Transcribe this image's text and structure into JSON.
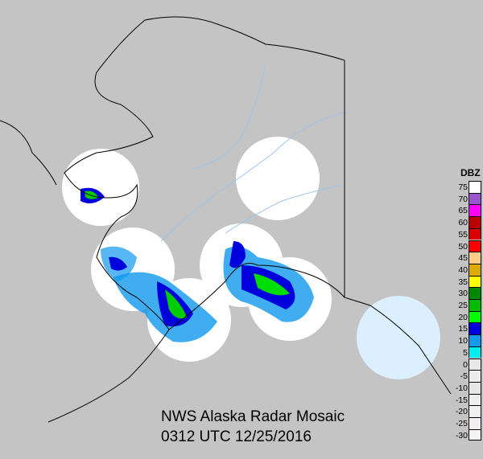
{
  "title": "NWS Alaska Radar Mosaic",
  "timestamp": "0312 UTC 12/25/2016",
  "colors": {
    "background": "#c4c4c4",
    "coastline": "#000000",
    "rivers": "#9fc3ee",
    "radar_coverage": "#ffffff",
    "radar_water": "#d6ecfa"
  },
  "legend": {
    "title": "DBZ",
    "items": [
      {
        "value": "75",
        "color": "#ffffff"
      },
      {
        "value": "70",
        "color": "#9955cc"
      },
      {
        "value": "65",
        "color": "#ff00ff"
      },
      {
        "value": "60",
        "color": "#bb0000"
      },
      {
        "value": "55",
        "color": "#dd0000"
      },
      {
        "value": "50",
        "color": "#ff0000"
      },
      {
        "value": "45",
        "color": "#ffcc88"
      },
      {
        "value": "40",
        "color": "#ddaa00"
      },
      {
        "value": "35",
        "color": "#ffff00"
      },
      {
        "value": "30",
        "color": "#008800"
      },
      {
        "value": "25",
        "color": "#00bb00"
      },
      {
        "value": "20",
        "color": "#00ff00"
      },
      {
        "value": "15",
        "color": "#0000dd"
      },
      {
        "value": "10",
        "color": "#1199ee"
      },
      {
        "value": "5",
        "color": "#00eeee"
      },
      {
        "value": "0",
        "color": "#e8e8e8"
      },
      {
        "value": "-5",
        "color": "#ececec"
      },
      {
        "value": "-10",
        "color": "#e6e6e6"
      },
      {
        "value": "-15",
        "color": "#eeeeee"
      },
      {
        "value": "-20",
        "color": "#f0f0f0"
      },
      {
        "value": "-25",
        "color": "#f2eef2"
      },
      {
        "value": "-30",
        "color": "#f4f4f4"
      }
    ]
  }
}
